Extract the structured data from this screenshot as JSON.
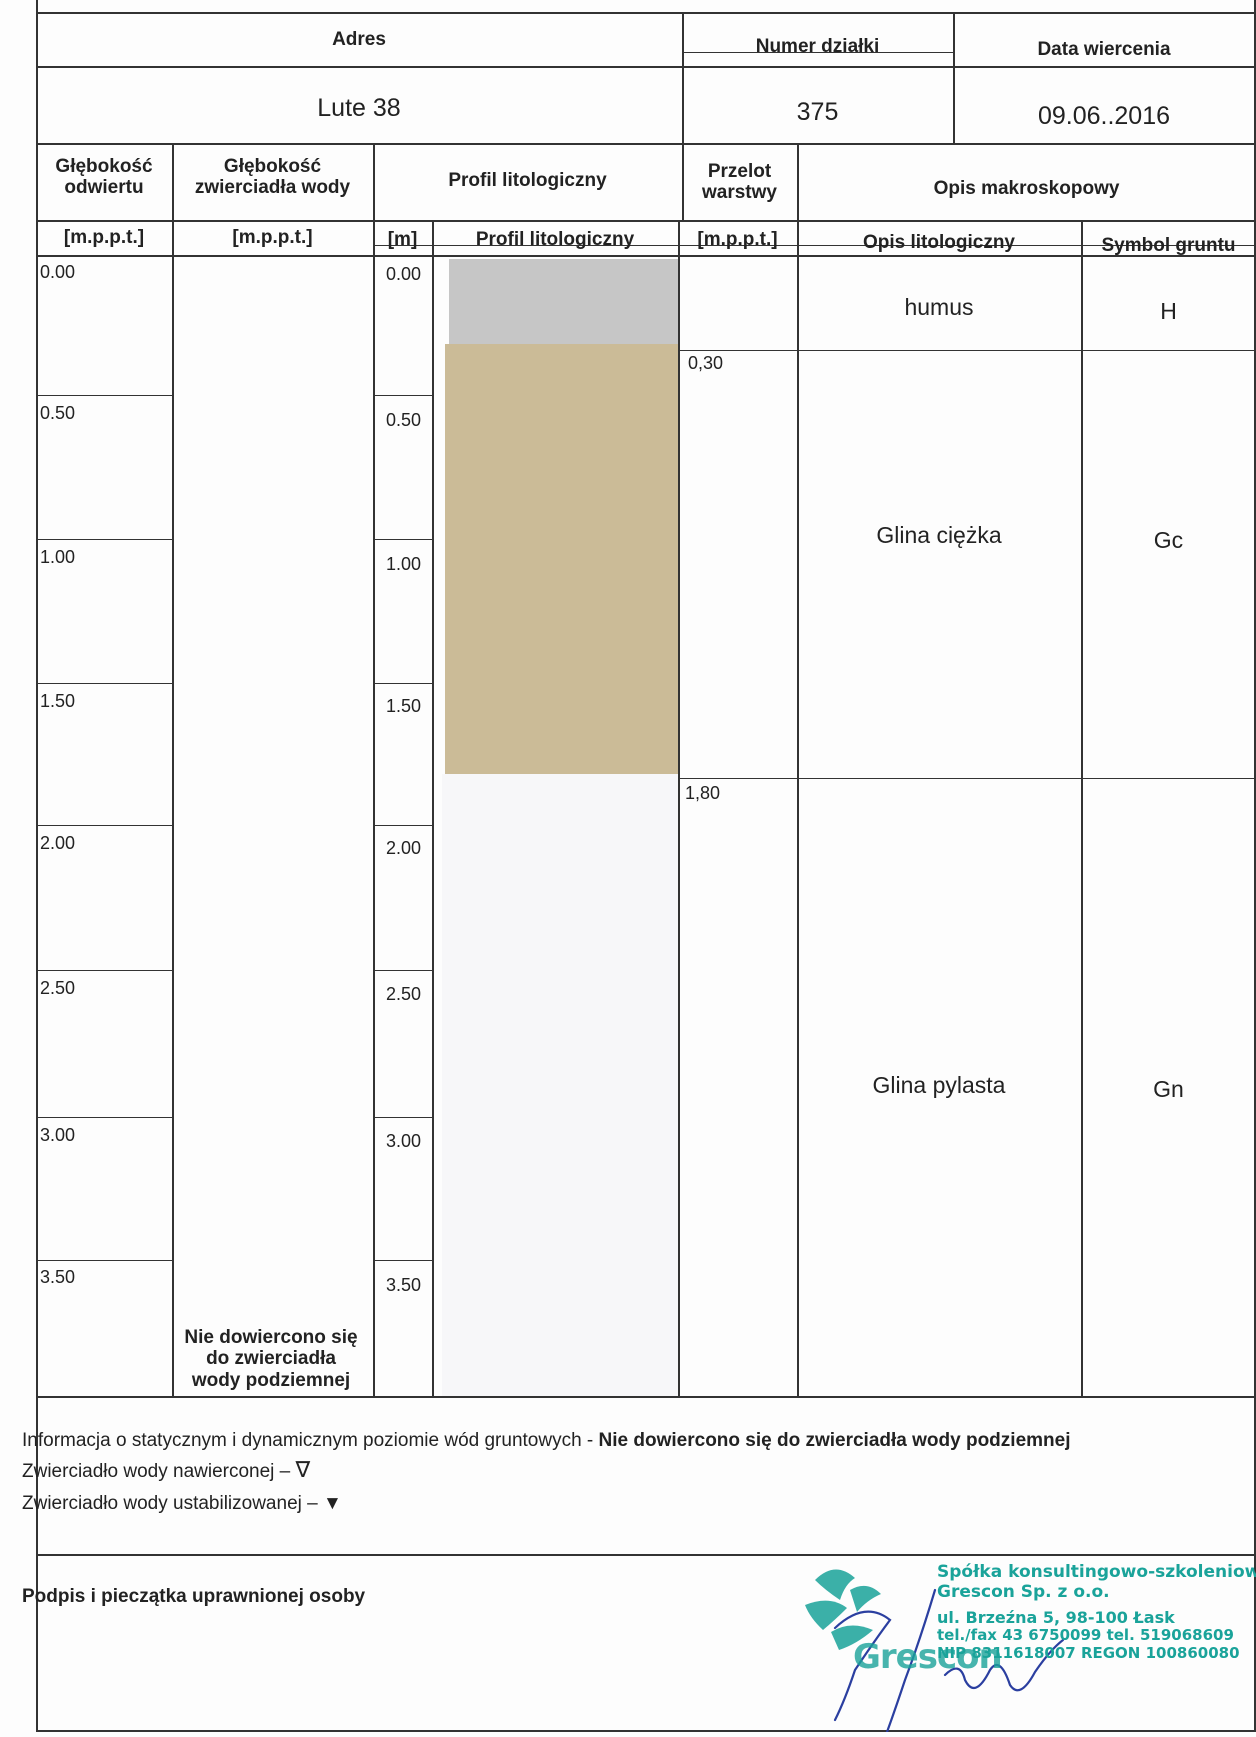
{
  "header": {
    "address_label": "Adres",
    "plot_label": "Numer działki",
    "date_label": "Data wiercenia",
    "address": "Lute 38",
    "plot_number": "375",
    "date": "09.06..2016"
  },
  "columns": {
    "depth": "Głębokość\nodwiertu",
    "water_depth": "Głębokość\nzwierciadła wody",
    "profile": "Profil litologiczny",
    "layer_passage": "Przelot\nwarstwy",
    "macro_desc": "Opis makroskopowy",
    "unit_depth": "[m.p.p.t.]",
    "unit_water": "[m.p.p.t.]",
    "unit_m": "[m]",
    "profile_sub": "Profil litologiczny",
    "unit_passage": "[m.p.p.t.]",
    "lith_desc": "Opis litologiczny",
    "soil_symbol": "Symbol gruntu"
  },
  "depth_ticks": [
    "0.00",
    "0.50",
    "1.00",
    "1.50",
    "2.00",
    "2.50",
    "3.00",
    "3.50"
  ],
  "layers": [
    {
      "top_depth": "",
      "description": "humus",
      "symbol": "H",
      "color": "#c6c6c6"
    },
    {
      "top_depth": "0,30",
      "description": "Glina ciężka",
      "symbol": "Gc",
      "color": "#cbbb97"
    },
    {
      "top_depth": "1,80",
      "description": "Glina pylasta",
      "symbol": "Gn",
      "color": "#f7f7f9"
    }
  ],
  "water_note": "Nie dowiercono się\ndo zwierciadła\nwody podziemnej",
  "footer": {
    "info_prefix": "Informacja o statycznym i dynamicznym poziomie wód gruntowych  - ",
    "info_bold": "Nie dowiercono się do zwierciadła wody podziemnej",
    "drilled_water": "Zwierciadło wody nawierconej – ",
    "drilled_symbol": "∇",
    "stabilized_water": "Zwierciadło wody ustabilizowanej – ",
    "stabilized_symbol": "▼",
    "signature_label": "Podpis i pieczątka uprawnionej osoby"
  },
  "stamp": {
    "line1": "Spółka konsultingowo-szkoleniowa",
    "line2": "Grescon Sp. z o.o.",
    "line3": "ul. Brzeźna 5, 98-100 Łask",
    "line4": "tel./fax 43 6750099 tel. 519068609",
    "line5": "NIP 8311618007 REGON 100860080",
    "logo_word": "Grescon",
    "color": "#1aa39a"
  }
}
